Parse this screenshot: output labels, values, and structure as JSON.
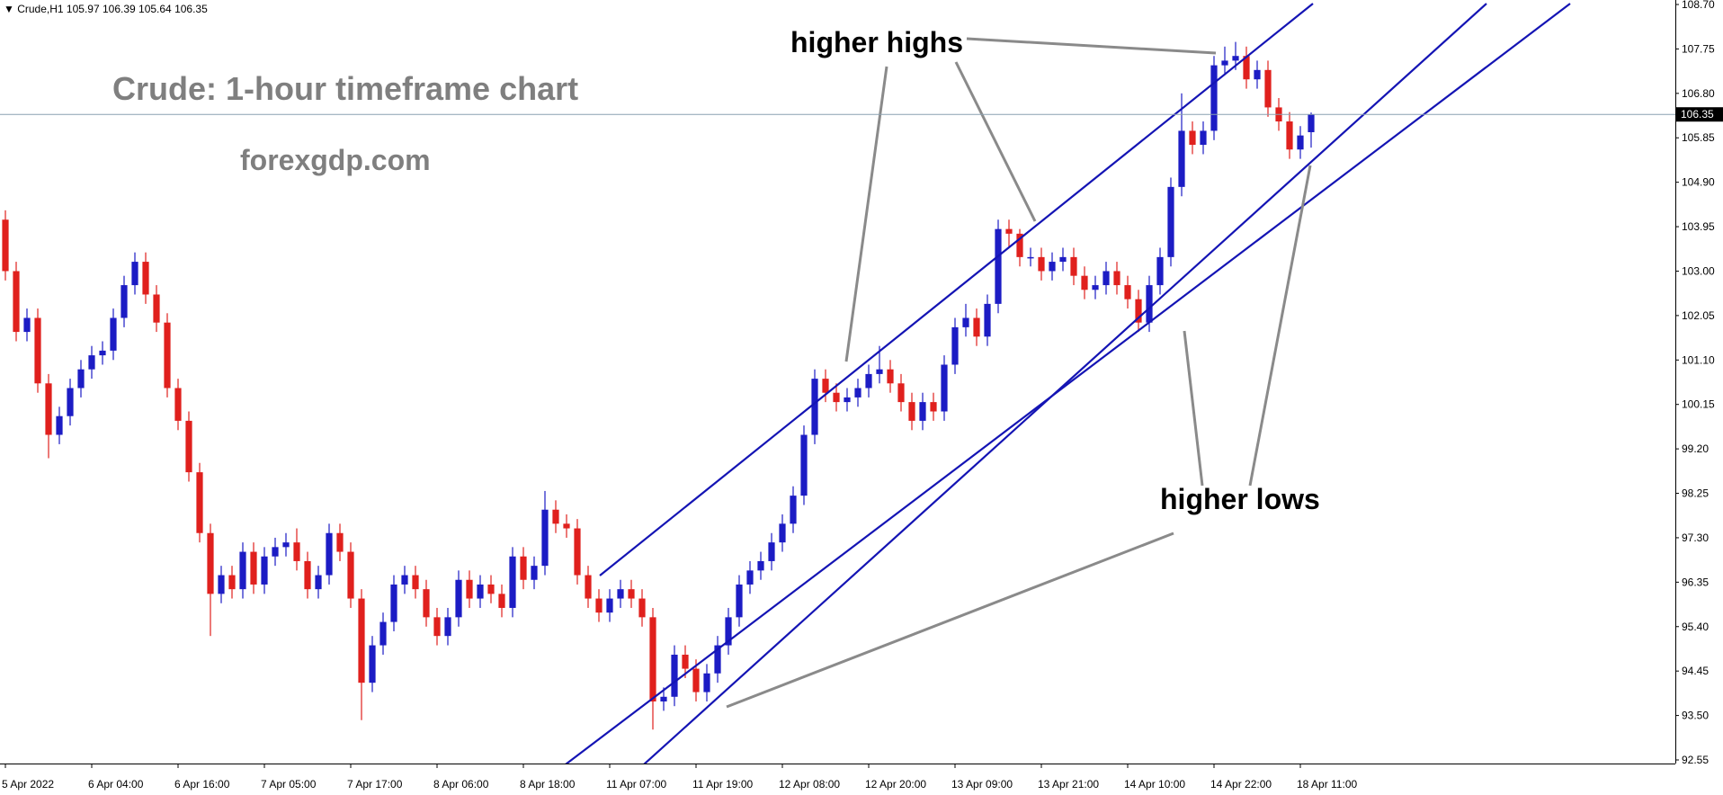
{
  "header": {
    "symbol": "Crude,H1",
    "ohlc": [
      "105.97",
      "106.39",
      "105.64",
      "106.35"
    ]
  },
  "chart_data": {
    "type": "candlestick",
    "title": "Crude: 1-hour timeframe chart",
    "subtitle": "forexgdp.com",
    "annotations": [
      "higher highs",
      "higher lows"
    ],
    "up_color": "#1c1cc4",
    "down_color": "#e0201d",
    "last_price": 106.35,
    "ylim": [
      92.55,
      108.7
    ],
    "yticks": [
      {
        "value": 92.55,
        "label": "92.55"
      },
      {
        "value": 93.5,
        "label": "93.50"
      },
      94.45,
      {
        "value": 95.4,
        "label": "95.40"
      },
      96.35,
      {
        "value": 97.3,
        "label": "97.30"
      },
      98.25,
      {
        "value": 99.2,
        "label": "99.20"
      },
      100.15,
      {
        "value": 101.1,
        "label": "101.10"
      },
      102.05,
      {
        "value": 103,
        "label": "103.00"
      },
      103.95,
      {
        "value": 104.9,
        "label": "104.90"
      },
      105.85,
      {
        "value": 106.8,
        "label": "106.80"
      },
      107.75,
      {
        "value": 108.7,
        "label": "108.70"
      }
    ],
    "xlim": [
      0,
      121
    ],
    "xticks": [
      {
        "value": 0,
        "label": "5 Apr 2022"
      },
      {
        "value": 8,
        "label": "6 Apr 04:00"
      },
      {
        "value": 16,
        "label": "6 Apr 16:00"
      },
      {
        "value": 24,
        "label": "7 Apr 05:00"
      },
      {
        "value": 32,
        "label": "7 Apr 17:00"
      },
      {
        "value": 40,
        "label": "8 Apr 06:00"
      },
      {
        "value": 48,
        "label": "8 Apr 18:00"
      },
      {
        "value": 56,
        "label": "11 Apr 07:00"
      },
      {
        "value": 64,
        "label": "11 Apr 19:00"
      },
      {
        "value": 72,
        "label": "12 Apr 08:00"
      },
      {
        "value": 80,
        "label": "12 Apr 20:00"
      },
      {
        "value": 88,
        "label": "13 Apr 09:00"
      },
      {
        "value": 96,
        "label": "13 Apr 21:00"
      },
      {
        "value": 104,
        "label": "14 Apr 10:00"
      },
      {
        "value": 112,
        "label": "14 Apr 22:00"
      },
      {
        "value": 120,
        "label": "18 Apr 11:00"
      }
    ],
    "open": [
      104.1,
      103.0,
      101.7,
      102.0,
      100.6,
      99.5,
      99.9,
      100.5,
      100.9,
      101.2,
      101.3,
      102.0,
      102.7,
      103.2,
      102.5,
      101.9,
      100.5,
      99.8,
      98.7,
      97.4,
      96.1,
      96.5,
      96.2,
      97.0,
      96.3,
      96.9,
      97.1,
      97.2,
      96.8,
      96.2,
      96.5,
      97.4,
      97.0,
      96.0,
      94.2,
      95.0,
      95.5,
      96.3,
      96.5,
      96.2,
      95.6,
      95.2,
      95.6,
      96.4,
      96.0,
      96.3,
      96.1,
      95.8,
      96.9,
      96.4,
      96.7,
      97.9,
      97.6,
      97.5,
      96.5,
      96.0,
      95.7,
      96.0,
      96.2,
      96.0,
      95.6,
      93.8,
      93.9,
      94.8,
      94.5,
      94.0,
      94.4,
      95.0,
      95.6,
      96.3,
      96.6,
      96.8,
      97.2,
      97.6,
      98.2,
      99.5,
      100.7,
      100.4,
      100.2,
      100.3,
      100.5,
      100.8,
      100.9,
      100.6,
      100.2,
      99.8,
      100.2,
      100.0,
      101.0,
      101.8,
      102.0,
      101.6,
      102.3,
      103.9,
      103.8,
      103.3,
      103.3,
      103.0,
      103.2,
      103.3,
      102.9,
      102.6,
      102.7,
      103.0,
      102.7,
      102.4,
      101.9,
      102.7,
      103.3,
      104.8,
      106.0,
      105.7,
      106.0,
      107.4,
      107.5,
      107.6,
      107.1,
      107.3,
      106.5,
      106.2,
      105.6,
      105.97
    ],
    "high": [
      104.3,
      103.2,
      102.2,
      102.2,
      100.8,
      100.1,
      100.7,
      101.1,
      101.4,
      101.5,
      102.2,
      102.9,
      103.4,
      103.4,
      102.7,
      102.1,
      100.7,
      100.0,
      98.9,
      97.6,
      96.7,
      96.7,
      97.2,
      97.2,
      97.1,
      97.3,
      97.4,
      97.5,
      97.0,
      96.7,
      97.6,
      97.6,
      97.2,
      96.2,
      95.2,
      95.7,
      96.5,
      96.7,
      96.7,
      96.4,
      95.8,
      95.8,
      96.6,
      96.6,
      96.5,
      96.5,
      96.3,
      97.1,
      97.1,
      96.9,
      98.3,
      98.1,
      97.8,
      97.7,
      96.7,
      96.2,
      96.2,
      96.4,
      96.4,
      96.2,
      95.8,
      94.1,
      95.0,
      95.0,
      94.7,
      94.6,
      95.2,
      95.8,
      96.5,
      96.8,
      97.0,
      97.4,
      97.8,
      98.4,
      99.7,
      100.9,
      100.9,
      100.6,
      100.5,
      100.7,
      101.0,
      101.4,
      101.1,
      100.8,
      100.4,
      100.4,
      100.4,
      101.2,
      102.0,
      102.3,
      102.2,
      102.5,
      104.1,
      104.1,
      103.9,
      103.5,
      103.5,
      103.4,
      103.5,
      103.5,
      103.1,
      102.9,
      103.2,
      103.2,
      102.9,
      102.6,
      102.9,
      103.5,
      105.0,
      106.8,
      106.2,
      106.2,
      107.6,
      107.8,
      107.9,
      107.8,
      107.5,
      107.5,
      106.7,
      106.4,
      106.1,
      106.39
    ],
    "low": [
      102.8,
      101.5,
      101.5,
      100.4,
      99.0,
      99.3,
      99.7,
      100.3,
      100.7,
      101.0,
      101.1,
      101.8,
      102.5,
      102.3,
      101.7,
      100.3,
      99.6,
      98.5,
      97.2,
      95.2,
      95.9,
      96.0,
      96.0,
      96.1,
      96.1,
      96.7,
      96.9,
      96.6,
      96.0,
      96.0,
      96.3,
      96.8,
      95.8,
      93.4,
      94.0,
      94.8,
      95.3,
      96.1,
      96.0,
      95.4,
      95.0,
      95.0,
      95.4,
      95.8,
      95.8,
      95.9,
      95.6,
      95.6,
      96.2,
      96.2,
      96.5,
      97.4,
      97.3,
      96.3,
      95.8,
      95.5,
      95.5,
      95.8,
      95.8,
      95.4,
      93.2,
      93.6,
      93.7,
      94.3,
      93.8,
      93.8,
      94.2,
      94.8,
      95.4,
      96.1,
      96.4,
      96.6,
      97.0,
      97.4,
      98.0,
      99.3,
      100.2,
      100.0,
      100.0,
      100.1,
      100.3,
      100.6,
      100.4,
      100.0,
      99.6,
      99.6,
      99.8,
      99.8,
      100.8,
      101.6,
      101.4,
      101.4,
      102.1,
      103.5,
      103.1,
      103.1,
      102.8,
      102.8,
      103.0,
      102.7,
      102.4,
      102.4,
      102.5,
      102.5,
      102.2,
      101.7,
      101.7,
      102.5,
      103.1,
      104.6,
      105.5,
      105.5,
      105.8,
      107.2,
      107.3,
      106.9,
      106.9,
      106.3,
      106.0,
      105.4,
      105.4,
      105.64
    ],
    "close": [
      103.0,
      101.7,
      102.0,
      100.6,
      99.5,
      99.9,
      100.5,
      100.9,
      101.2,
      101.3,
      102.0,
      102.7,
      103.2,
      102.5,
      101.9,
      100.5,
      99.8,
      98.7,
      97.4,
      96.1,
      96.5,
      96.2,
      97.0,
      96.3,
      96.9,
      97.1,
      97.2,
      96.8,
      96.2,
      96.5,
      97.4,
      97.0,
      96.0,
      94.2,
      95.0,
      95.5,
      96.3,
      96.5,
      96.2,
      95.6,
      95.2,
      95.6,
      96.4,
      96.0,
      96.3,
      96.1,
      95.8,
      96.9,
      96.4,
      96.7,
      97.9,
      97.6,
      97.5,
      96.5,
      96.0,
      95.7,
      96.0,
      96.2,
      96.0,
      95.6,
      93.8,
      93.9,
      94.8,
      94.5,
      94.0,
      94.4,
      95.0,
      95.6,
      96.3,
      96.6,
      96.8,
      97.2,
      97.6,
      98.2,
      99.5,
      100.7,
      100.4,
      100.2,
      100.3,
      100.5,
      100.8,
      100.9,
      100.6,
      100.2,
      99.8,
      100.2,
      100.0,
      101.0,
      101.8,
      102.0,
      101.6,
      102.3,
      103.9,
      103.8,
      103.3,
      103.3,
      103.0,
      103.2,
      103.3,
      102.9,
      102.6,
      102.7,
      103.0,
      102.7,
      102.4,
      101.9,
      102.7,
      103.3,
      104.8,
      106.0,
      105.7,
      106.0,
      107.4,
      107.5,
      107.6,
      107.1,
      107.3,
      106.5,
      106.2,
      105.6,
      105.9,
      106.35
    ]
  }
}
